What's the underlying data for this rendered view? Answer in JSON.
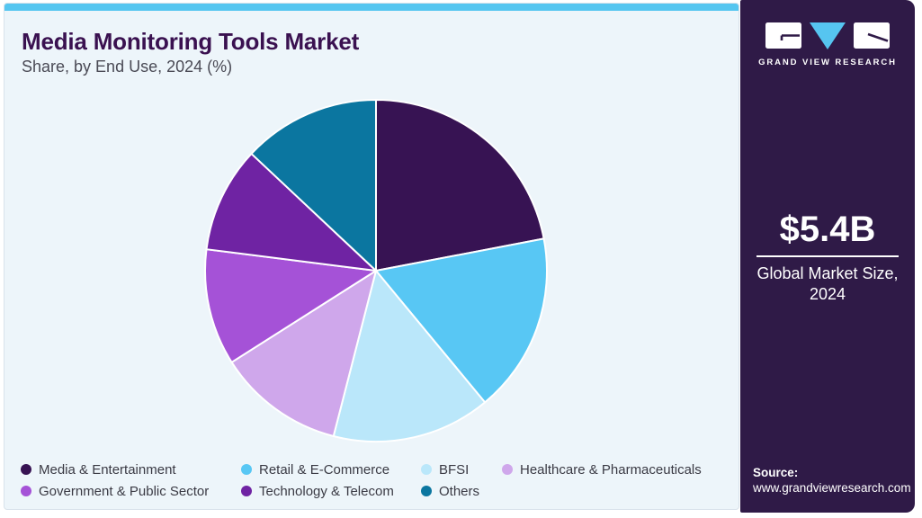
{
  "header": {
    "title": "Media Monitoring Tools Market",
    "subtitle": "Share, by End Use, 2024 (%)"
  },
  "chart_data": {
    "type": "pie",
    "title": "Media Monitoring Tools Market",
    "subtitle": "Share, by End Use, 2024 (%)",
    "unit": "%",
    "categories": [
      "Media & Entertainment",
      "Retail & E-Commerce",
      "BFSI",
      "Healthcare & Pharmaceuticals",
      "Government & Public Sector",
      "Technology & Telecom",
      "Others"
    ],
    "values": [
      22,
      17,
      15,
      12,
      11,
      10,
      13
    ],
    "colors": [
      "#371353",
      "#58C7F4",
      "#BAE7FA",
      "#CFA7EB",
      "#A552D7",
      "#6F23A3",
      "#0B76A0"
    ],
    "start_angle": "top",
    "direction": "clockwise",
    "slice_border_color": "#FFFFFF",
    "legend_position": "bottom",
    "legend_rows": [
      4,
      3
    ]
  },
  "sidebar": {
    "brand": "GRAND VIEW RESEARCH",
    "market_size": "$5.4B",
    "market_caption": "Global Market Size, 2024",
    "source_label": "Source:",
    "source_url": "www.grandviewresearch.com",
    "background": "#2F1A47",
    "logo_accent": "#56C5F0"
  },
  "theme": {
    "top_bar": "#55C6F0",
    "card_bg": "#EDF5FA",
    "title_color": "#3A1150",
    "subtitle_color": "#4A4A55",
    "legend_text_color": "#3A3A44"
  }
}
